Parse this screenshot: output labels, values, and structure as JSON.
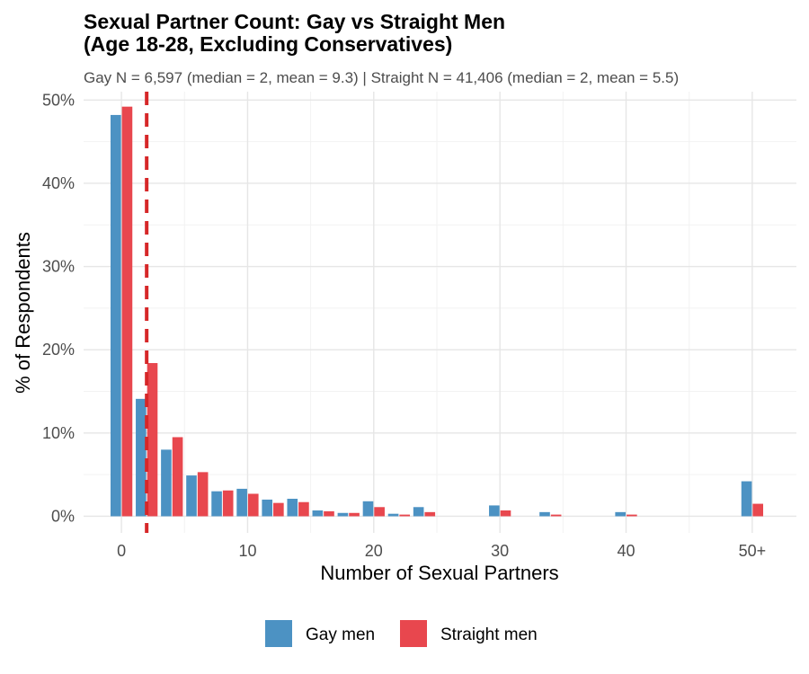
{
  "chart_data": {
    "type": "bar",
    "title_line1": "Sexual Partner Count: Gay vs Straight Men",
    "title_line2": "(Age 18-28, Excluding Conservatives)",
    "subtitle": "Gay N = 6,597 (median = 2, mean = 9.3) | Straight N = 41,406 (median = 2, mean = 5.5)",
    "xlabel": "Number of Sexual Partners",
    "ylabel": "% of Respondents",
    "xlim": [
      -3,
      53.5
    ],
    "ylim": [
      -2,
      51
    ],
    "x_ticks": [
      {
        "value": 0,
        "label": "0"
      },
      {
        "value": 10,
        "label": "10"
      },
      {
        "value": 20,
        "label": "20"
      },
      {
        "value": 30,
        "label": "30"
      },
      {
        "value": 40,
        "label": "40"
      },
      {
        "value": 50,
        "label": "50+"
      }
    ],
    "y_ticks": [
      {
        "value": 0,
        "label": "0%"
      },
      {
        "value": 10,
        "label": "10%"
      },
      {
        "value": 20,
        "label": "20%"
      },
      {
        "value": 30,
        "label": "30%"
      },
      {
        "value": 40,
        "label": "40%"
      },
      {
        "value": 50,
        "label": "50%"
      }
    ],
    "median_line": {
      "x": 2,
      "color": "#D62728",
      "style": "dashed"
    },
    "grid": true,
    "legend_position": "bottom",
    "series": [
      {
        "name": "Gay men",
        "color": "#4C92C3",
        "x": [
          0,
          2,
          4,
          6,
          8,
          10,
          12,
          14,
          16,
          18,
          20,
          22,
          24,
          30,
          34,
          40,
          50
        ],
        "values": [
          48.2,
          14.1,
          8.0,
          4.9,
          3.0,
          3.3,
          2.0,
          2.1,
          0.7,
          0.4,
          1.8,
          0.3,
          1.1,
          1.3,
          0.5,
          0.5,
          4.2
        ]
      },
      {
        "name": "Straight men",
        "color": "#E8474E",
        "x": [
          0,
          2,
          4,
          6,
          8,
          10,
          12,
          14,
          16,
          18,
          20,
          22,
          24,
          30,
          34,
          40,
          50
        ],
        "values": [
          49.2,
          18.4,
          9.5,
          5.3,
          3.1,
          2.7,
          1.6,
          1.7,
          0.6,
          0.4,
          1.1,
          0.2,
          0.5,
          0.7,
          0.2,
          0.2,
          1.5
        ]
      }
    ]
  }
}
